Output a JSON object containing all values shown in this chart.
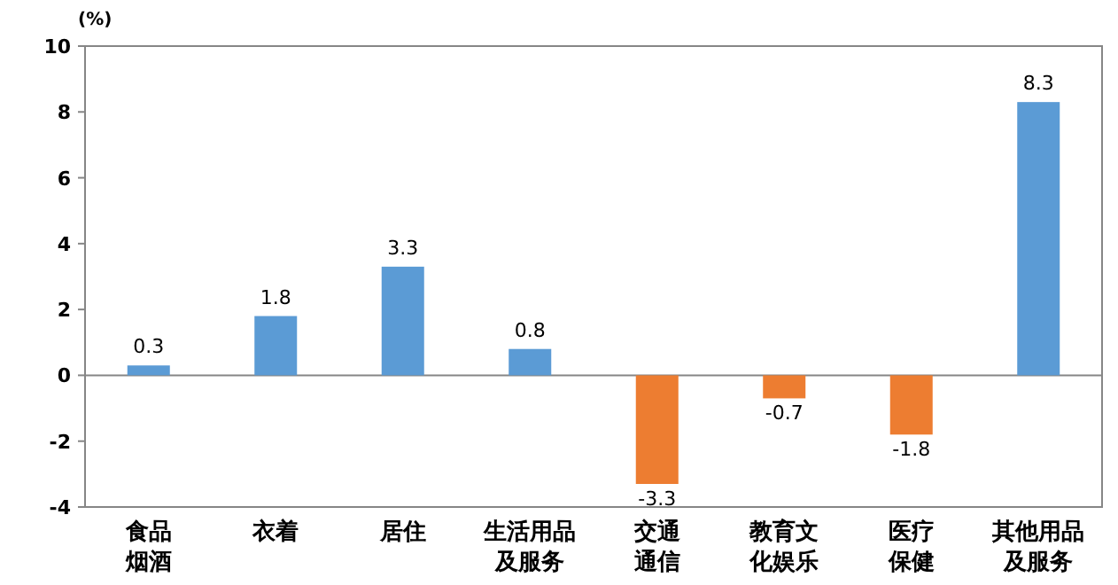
{
  "chart_data": {
    "type": "bar",
    "ylabel": "(%)",
    "categories": [
      "食品烟酒",
      "衣着",
      "居住",
      "生活用品及服务",
      "交通通信",
      "教育文化娱乐",
      "医疗保健",
      "其他用品及服务"
    ],
    "values": [
      0.3,
      1.8,
      3.3,
      0.8,
      -3.3,
      -0.7,
      -1.8,
      8.3
    ],
    "colors": [
      "#5b9bd5",
      "#5b9bd5",
      "#5b9bd5",
      "#5b9bd5",
      "#ed7d31",
      "#ed7d31",
      "#ed7d31",
      "#5b9bd5"
    ],
    "ylim": [
      -4,
      10
    ],
    "yticks": [
      -4,
      -2,
      0,
      2,
      4,
      6,
      8,
      10
    ],
    "data_labels": true
  }
}
